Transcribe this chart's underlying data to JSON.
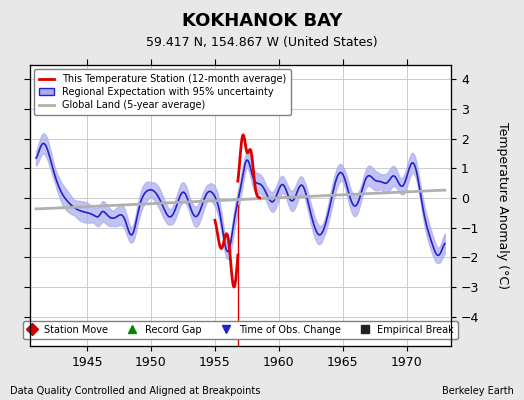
{
  "title": "KOKHANOK BAY",
  "subtitle": "59.417 N, 154.867 W (United States)",
  "ylabel": "Temperature Anomaly (°C)",
  "footer_left": "Data Quality Controlled and Aligned at Breakpoints",
  "footer_right": "Berkeley Earth",
  "xlim": [
    1940.5,
    1973.5
  ],
  "ylim": [
    -5,
    4.5
  ],
  "yticks": [
    -4,
    -3,
    -2,
    -1,
    0,
    1,
    2,
    3,
    4
  ],
  "xticks": [
    1945,
    1950,
    1955,
    1960,
    1965,
    1970
  ],
  "background_color": "#e8e8e8",
  "plot_bg_color": "#ffffff",
  "grid_color": "#cccccc",
  "regional_line_color": "#2222cc",
  "regional_fill_color": "#aaaaee",
  "station_line_color": "#dd0000",
  "global_land_color": "#b0b0b0",
  "legend_items": [
    {
      "label": "This Temperature Station (12-month average)",
      "color": "#dd0000",
      "lw": 2
    },
    {
      "label": "Regional Expectation with 95% uncertainty",
      "color": "#2222cc",
      "lw": 1.5
    },
    {
      "label": "Global Land (5-year average)",
      "color": "#b0b0b0",
      "lw": 2
    }
  ],
  "bottom_legend": [
    {
      "label": "Station Move",
      "marker": "D",
      "color": "#cc0000"
    },
    {
      "label": "Record Gap",
      "marker": "^",
      "color": "#008800"
    },
    {
      "label": "Time of Obs. Change",
      "marker": "v",
      "color": "#2222cc"
    },
    {
      "label": "Empirical Break",
      "marker": "s",
      "color": "#222222"
    }
  ]
}
